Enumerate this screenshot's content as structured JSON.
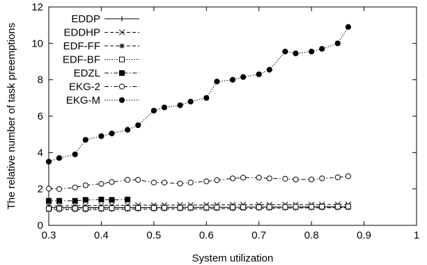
{
  "chart_data": {
    "type": "line",
    "xlabel": "System utilization",
    "ylabel": "The relative number of task preemptions",
    "xlim": [
      0.3,
      1.0
    ],
    "ylim": [
      0,
      12
    ],
    "xticks": [
      "0.3",
      "0.4",
      "0.5",
      "0.6",
      "0.7",
      "0.8",
      "0.9",
      "1"
    ],
    "yticks": [
      "0",
      "2",
      "4",
      "6",
      "8",
      "10",
      "12"
    ],
    "grid": false,
    "legend_position": "top-left",
    "series": [
      {
        "name": "EDDP",
        "marker": "plus",
        "line": "solid",
        "x": [
          0.3,
          0.32,
          0.35,
          0.37,
          0.4,
          0.42,
          0.45,
          0.47,
          0.5,
          0.52,
          0.55,
          0.57,
          0.6,
          0.62,
          0.65,
          0.67,
          0.7,
          0.72,
          0.75,
          0.77,
          0.8,
          0.82,
          0.85,
          0.87
        ],
        "y": [
          0.98,
          0.98,
          0.98,
          0.97,
          0.98,
          0.98,
          0.98,
          0.98,
          0.98,
          0.99,
          0.99,
          0.99,
          0.99,
          0.99,
          0.99,
          1.0,
          1.0,
          1.0,
          1.0,
          1.0,
          1.0,
          1.01,
          1.01,
          1.01
        ]
      },
      {
        "name": "EDDHP",
        "marker": "x",
        "line": "dashed",
        "x": [
          0.3,
          0.32,
          0.35,
          0.37,
          0.4,
          0.42,
          0.45,
          0.47,
          0.5,
          0.52,
          0.55,
          0.57,
          0.6,
          0.62,
          0.65,
          0.67,
          0.7,
          0.72,
          0.75,
          0.77,
          0.8,
          0.82,
          0.85,
          0.87
        ],
        "y": [
          1.06,
          1.07,
          1.08,
          1.08,
          1.09,
          1.1,
          1.1,
          1.11,
          1.11,
          1.11,
          1.12,
          1.12,
          1.12,
          1.12,
          1.13,
          1.13,
          1.13,
          1.13,
          1.14,
          1.14,
          1.14,
          1.14,
          1.15,
          1.15
        ]
      },
      {
        "name": "EDF-FF",
        "marker": "asterisk",
        "line": "dashed",
        "x": [
          0.3,
          0.32,
          0.35,
          0.37,
          0.4,
          0.42,
          0.45,
          0.47,
          0.5,
          0.52,
          0.55,
          0.57,
          0.6,
          0.62,
          0.65,
          0.67,
          0.7,
          0.72,
          0.75,
          0.77,
          0.8,
          0.82,
          0.85,
          0.87
        ],
        "y": [
          0.85,
          0.86,
          0.86,
          0.85,
          0.87,
          0.88,
          0.88,
          0.89,
          0.89,
          0.9,
          0.9,
          0.91,
          0.91,
          0.92,
          0.92,
          0.93,
          0.94,
          0.94,
          0.95,
          0.95,
          0.96,
          0.96,
          0.97,
          0.97
        ]
      },
      {
        "name": "EDF-BF",
        "marker": "square-open",
        "line": "dotted",
        "x": [
          0.3,
          0.32,
          0.35,
          0.37,
          0.4,
          0.42,
          0.45,
          0.47,
          0.5,
          0.52,
          0.55,
          0.57,
          0.6,
          0.62,
          0.65,
          0.67,
          0.7,
          0.72,
          0.75,
          0.77,
          0.8,
          0.82,
          0.85,
          0.87
        ],
        "y": [
          0.92,
          0.93,
          0.93,
          0.93,
          0.94,
          0.95,
          0.95,
          0.96,
          0.96,
          0.97,
          0.97,
          0.98,
          0.98,
          0.99,
          0.99,
          1.0,
          1.0,
          1.01,
          1.01,
          1.02,
          1.02,
          1.03,
          1.03,
          1.04
        ]
      },
      {
        "name": "EDZL",
        "marker": "square-filled",
        "line": "dashdot",
        "x": [
          0.3,
          0.32,
          0.35,
          0.37,
          0.4,
          0.42,
          0.45
        ],
        "y": [
          1.35,
          1.35,
          1.35,
          1.4,
          1.42,
          1.4,
          1.42
        ]
      },
      {
        "name": "EKG-2",
        "marker": "circle-open",
        "line": "dashdot",
        "x": [
          0.3,
          0.32,
          0.35,
          0.37,
          0.4,
          0.42,
          0.45,
          0.47,
          0.5,
          0.52,
          0.55,
          0.57,
          0.6,
          0.62,
          0.65,
          0.67,
          0.7,
          0.72,
          0.75,
          0.77,
          0.8,
          0.82,
          0.85,
          0.87
        ],
        "y": [
          2.02,
          2.0,
          2.08,
          2.2,
          2.28,
          2.38,
          2.5,
          2.5,
          2.35,
          2.35,
          2.3,
          2.35,
          2.42,
          2.48,
          2.58,
          2.62,
          2.62,
          2.58,
          2.56,
          2.52,
          2.52,
          2.58,
          2.64,
          2.7
        ]
      },
      {
        "name": "EKG-M",
        "marker": "circle-filled",
        "line": "dotted",
        "x": [
          0.3,
          0.32,
          0.35,
          0.37,
          0.4,
          0.42,
          0.45,
          0.47,
          0.5,
          0.52,
          0.55,
          0.57,
          0.6,
          0.62,
          0.65,
          0.67,
          0.7,
          0.72,
          0.75,
          0.77,
          0.8,
          0.82,
          0.85,
          0.87
        ],
        "y": [
          3.5,
          3.7,
          3.9,
          4.7,
          4.9,
          5.05,
          5.25,
          5.5,
          6.3,
          6.48,
          6.6,
          6.8,
          7.0,
          7.9,
          8.0,
          8.15,
          8.3,
          8.55,
          9.55,
          9.45,
          9.55,
          9.7,
          10.0,
          10.9
        ]
      }
    ]
  }
}
